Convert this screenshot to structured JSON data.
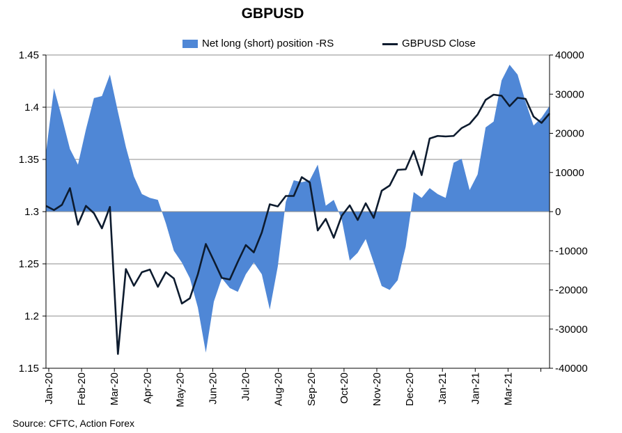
{
  "chart_data": {
    "type": "area",
    "title": "GBPUSD",
    "source": "Source: CFTC, Action Forex",
    "grid": true,
    "legend_position": "top",
    "y_left": {
      "label": "",
      "ylim": [
        1.15,
        1.45
      ],
      "ticks": [
        "1.15",
        "1.2",
        "1.25",
        "1.3",
        "1.35",
        "1.4",
        "1.45"
      ]
    },
    "y_right": {
      "label": "",
      "ylim": [
        -40000,
        40000
      ],
      "ticks": [
        "-40000",
        "-30000",
        "-20000",
        "-10000",
        "0",
        "10000",
        "20000",
        "30000",
        "40000"
      ]
    },
    "x_tick_labels": [
      "Jan-20",
      "Feb-20",
      "Mar-20",
      "Apr-20",
      "May-20",
      "Jun-20",
      "Jul-20",
      "Aug-20",
      "Sep-20",
      "Oct-20",
      "Nov-20",
      "Dec-20",
      "Jan-21",
      "Jan-21",
      "Mar-21"
    ],
    "series": [
      {
        "name": "Net long (short) position -RS",
        "kind": "area",
        "axis": "right",
        "color": "#4f87d6",
        "values": [
          15000,
          31500,
          24000,
          16000,
          12000,
          21000,
          29000,
          29500,
          35000,
          25500,
          16500,
          9000,
          4500,
          3500,
          3000,
          -3000,
          -10000,
          -13000,
          -17000,
          -24500,
          -36000,
          -23000,
          -17000,
          -19500,
          -20500,
          -16000,
          -13000,
          -16000,
          -25000,
          -14000,
          2500,
          8000,
          7500,
          8000,
          12000,
          1500,
          3000,
          -2000,
          -12500,
          -10500,
          -7000,
          -13000,
          -19000,
          -20000,
          -17500,
          -9000,
          5000,
          3500,
          6000,
          4500,
          3500,
          12500,
          13500,
          5500,
          9500,
          21500,
          23000,
          33500,
          37500,
          35000,
          28000,
          22000,
          24000,
          27000
        ]
      },
      {
        "name": "GBPUSD Close",
        "kind": "line",
        "axis": "left",
        "color": "#0d1b2e",
        "values": [
          1.3055,
          1.3015,
          1.3065,
          1.3225,
          1.2875,
          1.3055,
          1.2985,
          1.284,
          1.3045,
          1.1637,
          1.245,
          1.229,
          1.242,
          1.2445,
          1.228,
          1.242,
          1.236,
          1.212,
          1.217,
          1.24,
          1.269,
          1.253,
          1.2365,
          1.235,
          1.252,
          1.268,
          1.261,
          1.28,
          1.307,
          1.305,
          1.315,
          1.315,
          1.333,
          1.328,
          1.282,
          1.293,
          1.275,
          1.296,
          1.306,
          1.292,
          1.308,
          1.294,
          1.32,
          1.325,
          1.34,
          1.3405,
          1.358,
          1.335,
          1.37,
          1.3725,
          1.372,
          1.3725,
          1.38,
          1.384,
          1.393,
          1.407,
          1.412,
          1.411,
          1.401,
          1.409,
          1.408,
          1.391,
          1.385,
          1.394
        ]
      }
    ]
  }
}
